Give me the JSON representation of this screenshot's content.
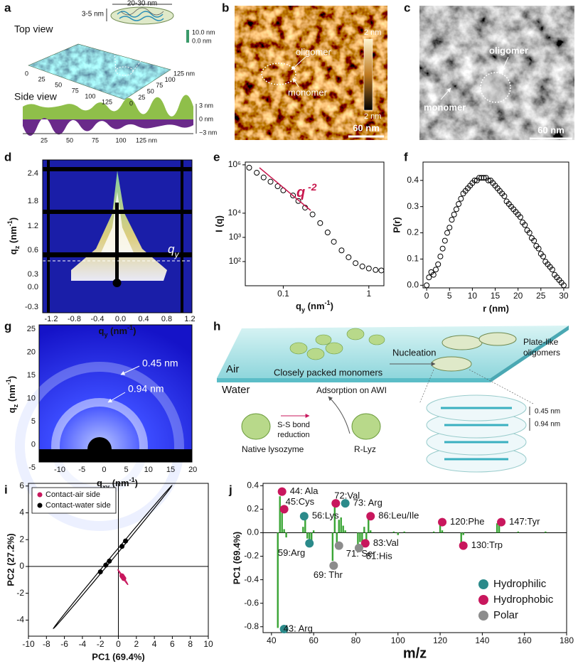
{
  "panel_labels": [
    "a",
    "b",
    "c",
    "d",
    "e",
    "f",
    "g",
    "h",
    "i",
    "j"
  ],
  "a": {
    "top_view": "Top view",
    "side_view": "Side view",
    "width": "20-30 nm",
    "height": "3-5 nm",
    "z_top": "10.0 nm",
    "z_bottom": "0.0 nm",
    "front_ticks": [
      "0",
      "25",
      "50",
      "75",
      "100",
      "125"
    ],
    "depth_ticks": [
      "0",
      "25",
      "50",
      "75",
      "100",
      "125 nm"
    ],
    "side_x_ticks": [
      "25",
      "50",
      "75",
      "100",
      "125 nm"
    ],
    "side_y_ticks": [
      "3 nm",
      "0 nm",
      "−3 nm"
    ]
  },
  "b": {
    "scale_top": "2 nm",
    "scale_bottom": "2 nm",
    "oligomer": "oligomer",
    "monomer": "monomer",
    "scale_bar": "60 nm"
  },
  "c": {
    "oligomer": "oligomer",
    "monomer": "monomer",
    "scale_bar": "60 nm"
  },
  "d": {
    "y_label": [
      {
        "text": "q"
      },
      {
        "sub": "z"
      },
      {
        "text": " (nm"
      },
      {
        "sup": "-1"
      },
      {
        "text": ")"
      }
    ],
    "x_label": [
      {
        "text": "q"
      },
      {
        "sub": "y"
      },
      {
        "text": " (nm"
      },
      {
        "sup": "-1"
      },
      {
        "text": ")"
      }
    ],
    "y_ticks": [
      "2.4",
      "1.8",
      "1.2",
      "0.6",
      "0.3",
      "0.0",
      "-0.3"
    ],
    "x_ticks": [
      "-1.2",
      "-0.8",
      "-0.4",
      "0.0",
      "0.4",
      "0.8",
      "1.2"
    ],
    "annotation": [
      {
        "text": "q"
      },
      {
        "sub": "y"
      }
    ]
  },
  "g": {
    "y_label": [
      {
        "text": "q"
      },
      {
        "sub": "z"
      },
      {
        "text": " (nm"
      },
      {
        "sup": "-1"
      },
      {
        "text": ")"
      }
    ],
    "x_label": [
      {
        "text": "q"
      },
      {
        "sub": "xy"
      },
      {
        "text": " (nm"
      },
      {
        "sup": "-1"
      },
      {
        "text": ")"
      }
    ],
    "y_ticks": [
      "25",
      "20",
      "15",
      "10",
      "5",
      "0",
      "-5"
    ],
    "x_ticks": [
      "-10",
      "-5",
      "0",
      "5",
      "10",
      "15",
      "20"
    ],
    "ring_outer": "0.45 nm",
    "ring_inner": "0.94 nm"
  },
  "h": {
    "air": "Air",
    "water": "Water",
    "monomers": "Closely packed monomers",
    "nucleation": "Nucleation",
    "oligomers": [
      "Plate-like",
      "oligomers"
    ],
    "adsorption": "Adsorption on AWI",
    "reduction": [
      "S-S bond",
      "reduction"
    ],
    "native": "Native lysozyme",
    "rlyz": "R-Lyz",
    "spacing_small": "0.45 nm",
    "spacing_large": "0.94 nm"
  },
  "chart_data": [
    {
      "type": "scatter",
      "marker": "open",
      "log_x": true,
      "log_y": true,
      "x": [
        0.04,
        0.049,
        0.059,
        0.071,
        0.086,
        0.1,
        0.13,
        0.15,
        0.18,
        0.22,
        0.27,
        0.33,
        0.39,
        0.48,
        0.58,
        0.7,
        0.84,
        1.0,
        1.2,
        1.4
      ],
      "values": [
        760000,
        470000,
        300000,
        200000,
        130000,
        88000,
        54000,
        32000,
        17000,
        8900,
        3900,
        1600,
        660,
        290,
        150,
        86,
        63,
        52,
        45,
        43
      ],
      "xlim": [
        0.036,
        1.5
      ],
      "ylim": [
        10,
        1300000
      ],
      "xticks": [
        0.1,
        1
      ],
      "yticks": [
        {
          "value": 100,
          "label": "10²"
        },
        {
          "value": 1000,
          "label": "10³"
        },
        {
          "value": 10000,
          "label": "10⁴"
        },
        {
          "value": 1000000,
          "label": "10⁶"
        }
      ],
      "x_label": [
        {
          "text": "q"
        },
        {
          "sub": "y"
        },
        {
          "text": " (nm"
        },
        {
          "sup": "-1"
        },
        {
          "text": ")"
        }
      ],
      "y_label": "I (q)",
      "annotation": [
        {
          "text": "q"
        },
        {
          "sup": " -2"
        }
      ],
      "annotation_color": "#c8174d"
    },
    {
      "type": "scatter",
      "marker": "open",
      "x": [
        0,
        0.5,
        1,
        1.5,
        2,
        2.5,
        3,
        3.5,
        4,
        4.5,
        5,
        5.5,
        6,
        6.5,
        7,
        7.5,
        8,
        8.5,
        9,
        9.5,
        10,
        10.5,
        11,
        11.5,
        12,
        12.5,
        13,
        13.5,
        14,
        14.5,
        15,
        15.5,
        16,
        16.5,
        17,
        17.5,
        18,
        18.5,
        19,
        19.5,
        20,
        20.5,
        21,
        21.5,
        22,
        22.5,
        23,
        23.5,
        24,
        24.5,
        25,
        25.5,
        26,
        26.5,
        27,
        27.5,
        28,
        28.5,
        29,
        29.5,
        30
      ],
      "values": [
        0.0,
        0.03,
        0.05,
        0.04,
        0.06,
        0.08,
        0.11,
        0.14,
        0.17,
        0.2,
        0.22,
        0.25,
        0.27,
        0.29,
        0.31,
        0.33,
        0.35,
        0.36,
        0.37,
        0.38,
        0.39,
        0.4,
        0.4,
        0.41,
        0.41,
        0.41,
        0.41,
        0.4,
        0.4,
        0.39,
        0.38,
        0.37,
        0.36,
        0.35,
        0.34,
        0.32,
        0.31,
        0.3,
        0.29,
        0.28,
        0.27,
        0.26,
        0.24,
        0.23,
        0.21,
        0.2,
        0.18,
        0.17,
        0.15,
        0.14,
        0.12,
        0.11,
        0.09,
        0.08,
        0.07,
        0.06,
        0.04,
        0.03,
        0.02,
        0.01,
        0.0
      ],
      "xlim": [
        -0.8,
        31.1
      ],
      "ylim": [
        -0.01,
        0.47
      ],
      "xticks": [
        0,
        5,
        10,
        15,
        20,
        25,
        30
      ],
      "yticks": [
        {
          "value": 0,
          "label": "0.0"
        },
        0.1,
        0.2,
        0.3,
        0.4
      ],
      "x_label": "r (nm)",
      "y_label": "P(r)"
    },
    {
      "type": "scatter",
      "confidence_ellipse": true,
      "zero_lines": true,
      "legend": "upper left",
      "series": [
        {
          "name": "Contact-air side",
          "color": "#c8175d",
          "x": [
            0.4,
            0.6,
            0.5
          ],
          "values": [
            -0.7,
            -0.9,
            -0.8
          ]
        },
        {
          "name": "Contact-water side",
          "color": "#000000",
          "x": [
            -2,
            -1.4,
            -1,
            0.4,
            0.8
          ],
          "values": [
            -0.4,
            0.1,
            0.4,
            1.5,
            1.9
          ]
        }
      ],
      "xlim": [
        -10,
        10
      ],
      "ylim": [
        -5.2,
        6.2
      ],
      "xticks": [
        -10,
        -8,
        -6,
        -4,
        -2,
        0,
        2,
        4,
        6,
        8,
        10
      ],
      "yticks": [
        -4,
        -2,
        0,
        2,
        4,
        6
      ],
      "x_label": "PC1 (69.4%)",
      "y_label": "PC2 (27.2%)"
    },
    {
      "type": "bar",
      "color": "#3aa535",
      "zero_lines": true,
      "legend": "lower right",
      "x": [
        43,
        44,
        45,
        46,
        47,
        55,
        56,
        57,
        58,
        59,
        60,
        69,
        70,
        71,
        72,
        73,
        74,
        75,
        81,
        82,
        83,
        84,
        85,
        86,
        87,
        98,
        100,
        103,
        117,
        120,
        121,
        130,
        131,
        147,
        148,
        157,
        170
      ],
      "values": [
        -0.81,
        0.31,
        0.17,
        0.03,
        -0.04,
        0.05,
        0.11,
        -0.05,
        -0.07,
        -0.09,
        0.02,
        -0.24,
        0.23,
        -0.14,
        0.11,
        0.13,
        0.06,
        0.02,
        -0.13,
        -0.08,
        -0.09,
        0.05,
        -0.06,
        0.13,
        0.02,
        0.01,
        -0.02,
        0.01,
        0.01,
        0.08,
        0.02,
        -0.09,
        -0.02,
        0.08,
        0.07,
        0.01,
        0.01
      ],
      "series": [
        {
          "name": "Hydrophilic",
          "color": "#2b8a8a",
          "x": [
            46,
            55.5,
            58,
            75
          ],
          "values": [
            -0.82,
            0.14,
            -0.09,
            0.25
          ],
          "labels": [
            "43: Arg",
            "56:Lys",
            "59:Arg",
            "73: Arg"
          ]
        },
        {
          "name": "Hydrophobic",
          "color": "#c8175d",
          "x": [
            45,
            46,
            70.5,
            87,
            84.5,
            121,
            131,
            149
          ],
          "values": [
            0.35,
            0.2,
            0.25,
            0.14,
            -0.09,
            0.09,
            -0.11,
            0.09
          ],
          "labels": [
            "44: Ala",
            "45:Cys",
            "72:Val",
            "86:Leu/Ile",
            "83:Val",
            "120:Phe",
            "130:Trp",
            "147:Tyr"
          ]
        },
        {
          "name": "Polar",
          "color": "#8c8c8c",
          "x": [
            69.5,
            72,
            81.5
          ],
          "values": [
            -0.28,
            -0.11,
            -0.13
          ],
          "labels": [
            "69: Thr",
            "71: Ser",
            "81:His"
          ]
        }
      ],
      "xlim": [
        36,
        180
      ],
      "ylim": [
        -0.85,
        0.42
      ],
      "xticks": [
        40,
        60,
        80,
        100,
        120,
        140,
        160,
        180
      ],
      "yticks": [
        -0.8,
        -0.6,
        -0.4,
        -0.2,
        {
          "value": 0,
          "label": "0.0"
        },
        0.2,
        0.4
      ],
      "x_label": "m/z",
      "y_label": "PC1 (69.4%)"
    }
  ]
}
